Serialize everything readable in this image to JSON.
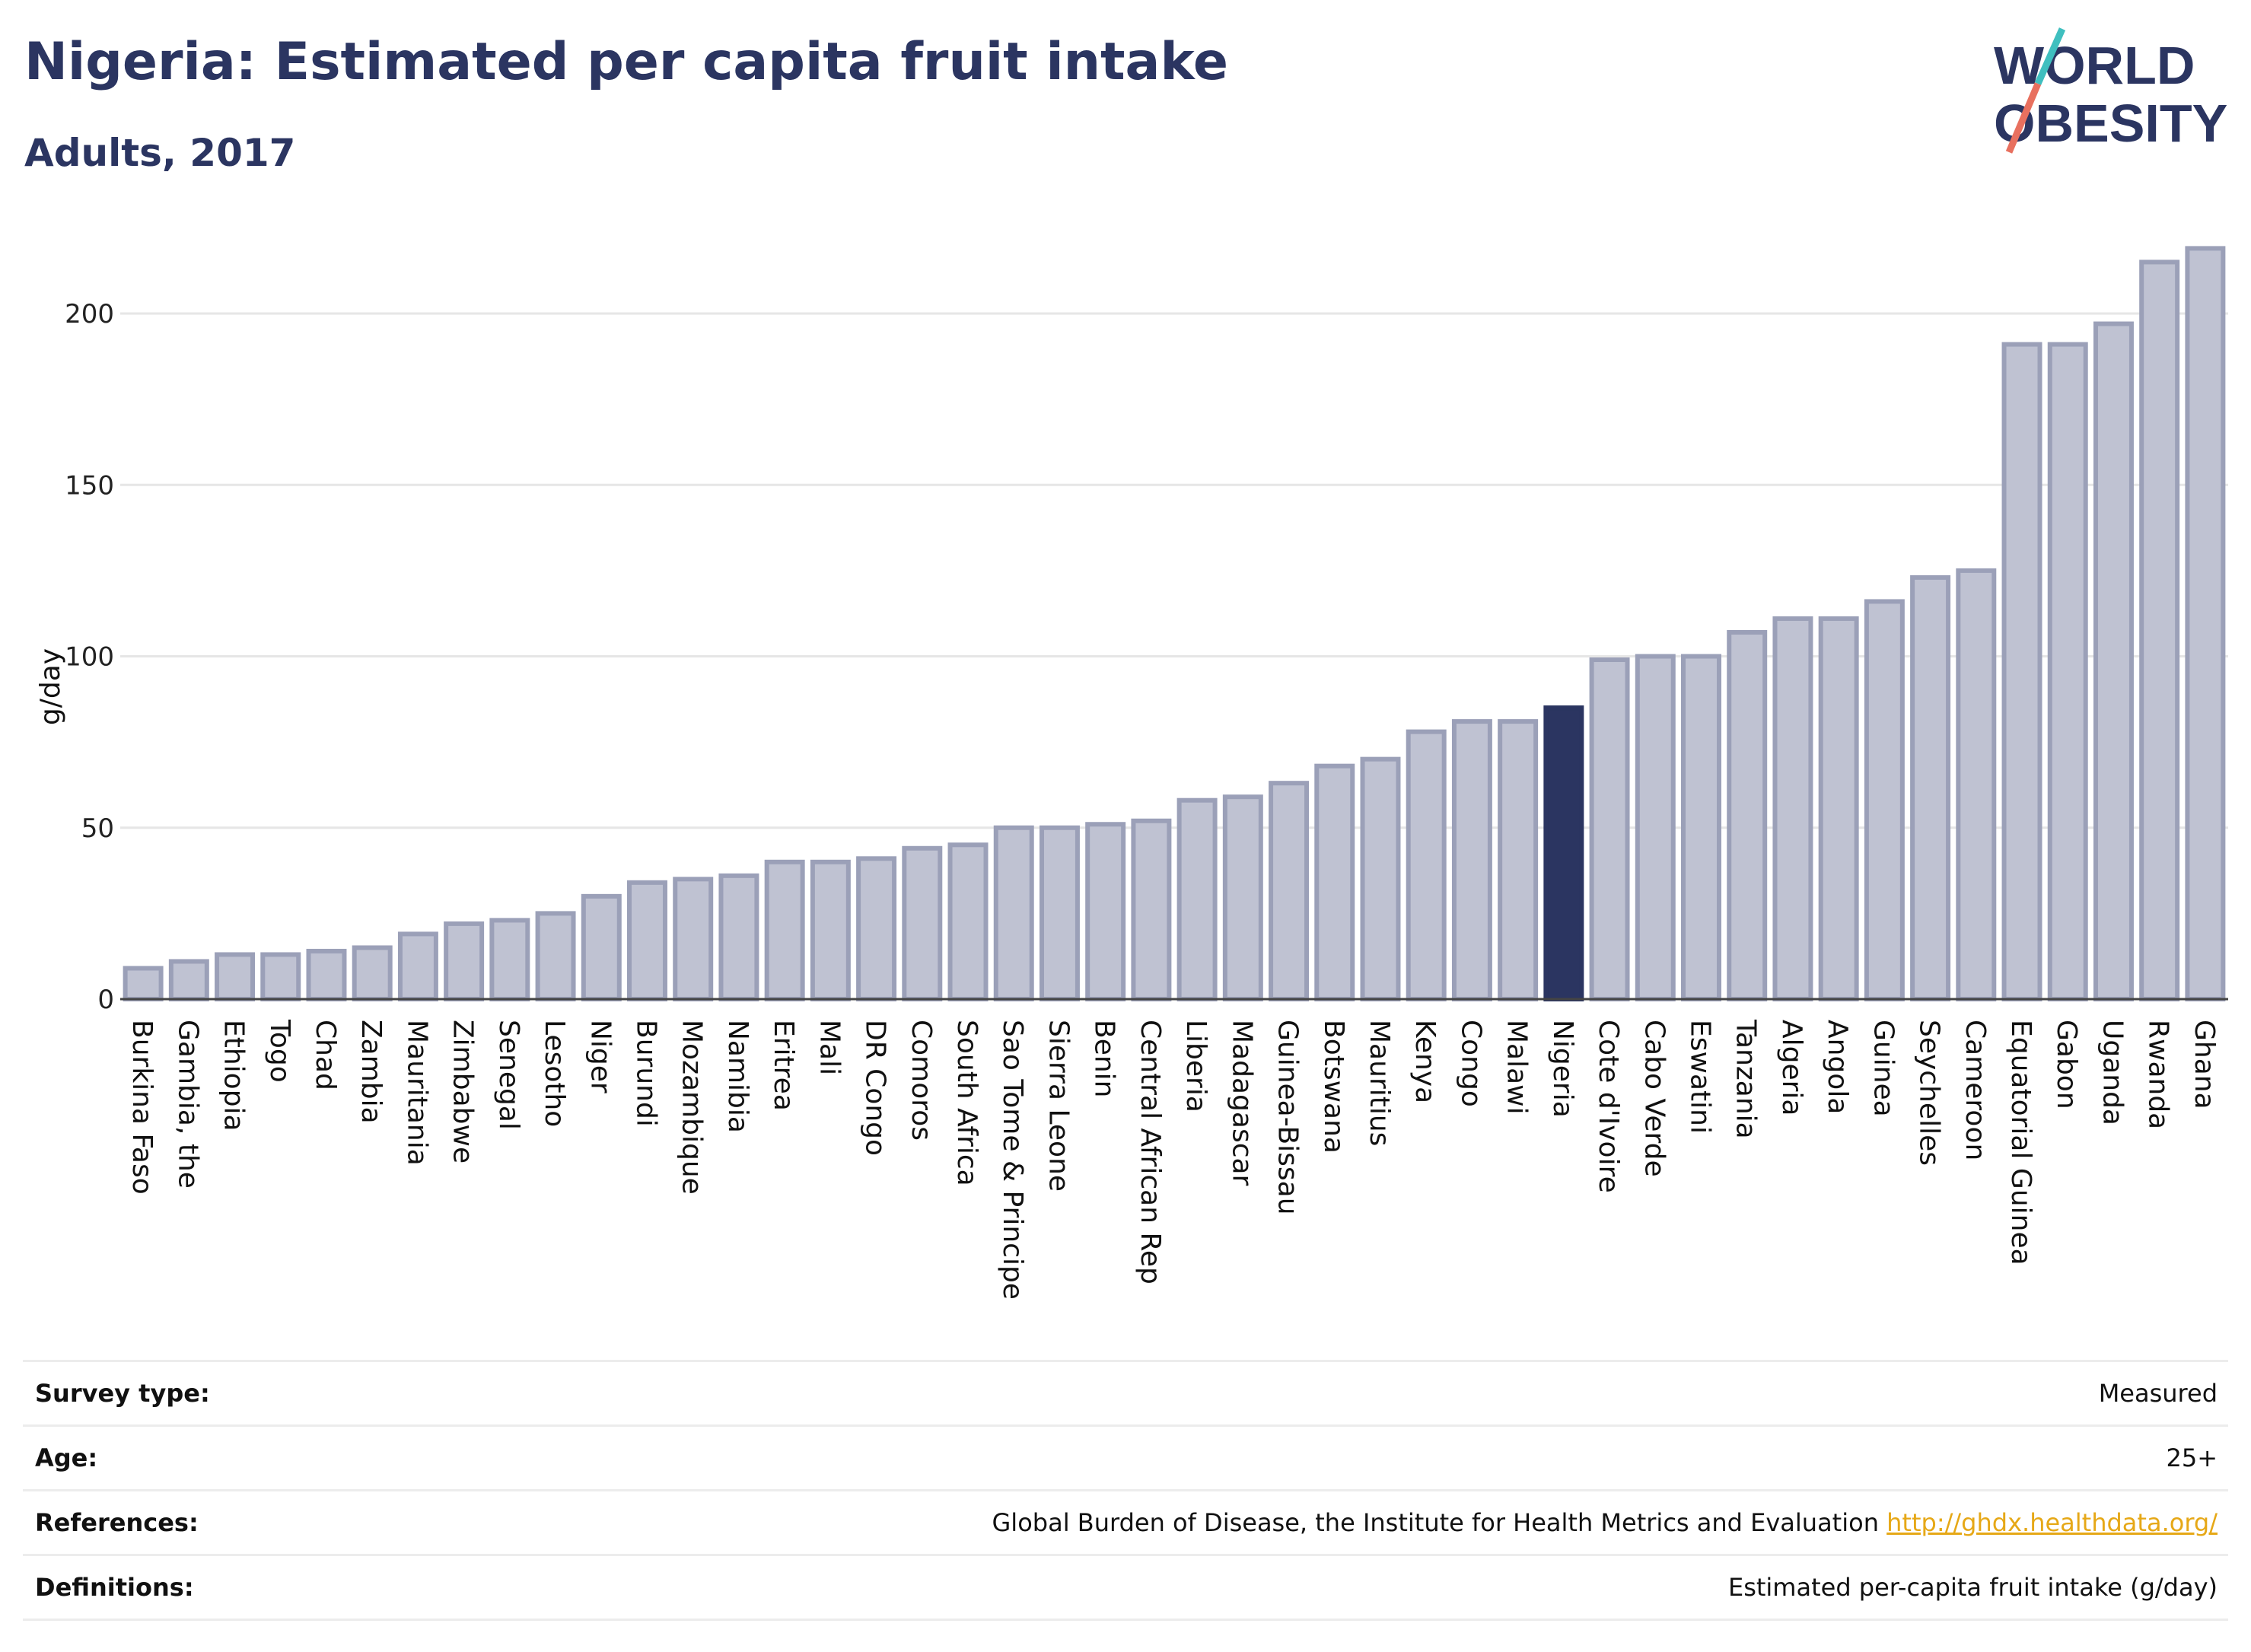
{
  "header": {
    "title": "Nigeria: Estimated per capita fruit intake",
    "subtitle": "Adults, 2017"
  },
  "logo": {
    "line1": "WORLD",
    "line2": "OBESITY",
    "colors": {
      "text": "#2b3561",
      "teal": "#3fbfbf",
      "coral": "#e8705f"
    }
  },
  "colors": {
    "bar_fill": "#bfc2d2",
    "bar_stroke": "#9ba0b8",
    "highlight": "#2b3561",
    "grid": "#e6e6e6",
    "axis": "#444444"
  },
  "chart_data": {
    "type": "bar",
    "ylabel": "g/day",
    "ylim": [
      0,
      220
    ],
    "yticks": [
      0,
      50,
      100,
      150,
      200
    ],
    "grid": true,
    "highlight": "Nigeria",
    "categories": [
      "Burkina Faso",
      "Gambia, the",
      "Ethiopia",
      "Togo",
      "Chad",
      "Zambia",
      "Mauritania",
      "Zimbabwe",
      "Senegal",
      "Lesotho",
      "Niger",
      "Burundi",
      "Mozambique",
      "Namibia",
      "Eritrea",
      "Mali",
      "DR Congo",
      "Comoros",
      "South Africa",
      "Sao Tome & Principe",
      "Sierra Leone",
      "Benin",
      "Central African Rep",
      "Liberia",
      "Madagascar",
      "Guinea-Bissau",
      "Botswana",
      "Mauritius",
      "Kenya",
      "Congo",
      "Malawi",
      "Nigeria",
      "Cote d'Ivoire",
      "Cabo Verde",
      "Eswatini",
      "Tanzania",
      "Algeria",
      "Angola",
      "Guinea",
      "Seychelles",
      "Cameroon",
      "Equatorial Guinea",
      "Gabon",
      "Uganda",
      "Rwanda",
      "Ghana"
    ],
    "values": [
      9,
      11,
      13,
      13,
      14,
      15,
      19,
      22,
      23,
      25,
      30,
      34,
      35,
      36,
      40,
      40,
      41,
      44,
      45,
      50,
      50,
      51,
      52,
      58,
      59,
      63,
      68,
      70,
      78,
      81,
      81,
      85,
      99,
      100,
      100,
      107,
      111,
      111,
      116,
      123,
      125,
      191,
      191,
      197,
      215,
      219
    ]
  },
  "meta": {
    "survey_label": "Survey type:",
    "survey_value": "Measured",
    "age_label": "Age:",
    "age_value": "25+",
    "references_label": "References:",
    "references_text": "Global Burden of Disease, the Institute for Health Metrics and Evaluation",
    "references_link": "http://ghdx.healthdata.org/",
    "definitions_label": "Definitions:",
    "definitions_value": "Estimated per-capita fruit intake (g/day)"
  }
}
